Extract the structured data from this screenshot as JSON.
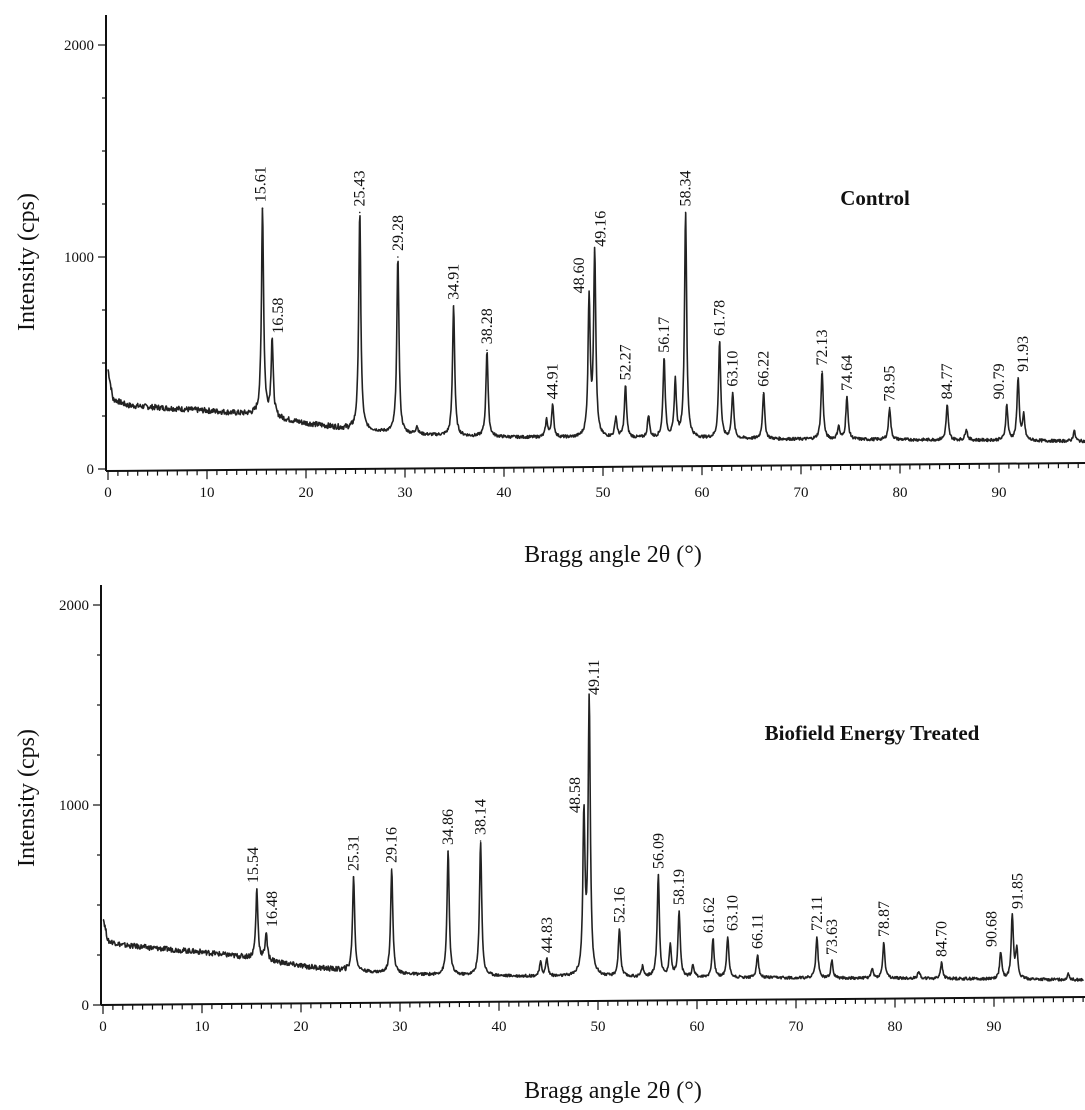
{
  "chart_data": [
    {
      "type": "line",
      "title": "Control",
      "xlabel": "Bragg angle 2θ (°)",
      "ylabel": "Intensity (cps)",
      "xlim": [
        0,
        99
      ],
      "ylim": [
        0,
        2000
      ],
      "xticks": [
        "0",
        "10",
        "20",
        "30",
        "40",
        "50",
        "60",
        "70",
        "80",
        "90"
      ],
      "yticks": [
        "0",
        "1000",
        "2000"
      ],
      "baseline": [
        [
          0,
          470
        ],
        [
          0.5,
          330
        ],
        [
          2,
          300
        ],
        [
          5,
          290
        ],
        [
          10,
          275
        ],
        [
          15,
          255
        ],
        [
          20,
          215
        ],
        [
          25,
          185
        ],
        [
          30,
          165
        ],
        [
          35,
          155
        ],
        [
          40,
          150
        ],
        [
          45,
          148
        ],
        [
          50,
          145
        ],
        [
          60,
          143
        ],
        [
          70,
          140
        ],
        [
          80,
          138
        ],
        [
          90,
          135
        ],
        [
          99,
          130
        ]
      ],
      "peaks": [
        {
          "x": 15.61,
          "y": 1230,
          "label": "15.61"
        },
        {
          "x": 16.58,
          "y": 610,
          "label": "16.58"
        },
        {
          "x": 25.43,
          "y": 1210,
          "label": "25.43"
        },
        {
          "x": 29.28,
          "y": 1000,
          "label": "29.28"
        },
        {
          "x": 34.91,
          "y": 770,
          "label": "34.91"
        },
        {
          "x": 38.28,
          "y": 560,
          "label": "38.28"
        },
        {
          "x": 44.91,
          "y": 300,
          "label": "44.91"
        },
        {
          "x": 48.6,
          "y": 800,
          "label": "48.60"
        },
        {
          "x": 49.16,
          "y": 1020,
          "label": "49.16"
        },
        {
          "x": 52.27,
          "y": 390,
          "label": "52.27"
        },
        {
          "x": 56.17,
          "y": 520,
          "label": "56.17"
        },
        {
          "x": 58.34,
          "y": 1210,
          "label": "58.34"
        },
        {
          "x": 61.78,
          "y": 600,
          "label": "61.78"
        },
        {
          "x": 63.1,
          "y": 360,
          "label": "63.10"
        },
        {
          "x": 66.22,
          "y": 360,
          "label": "66.22"
        },
        {
          "x": 72.13,
          "y": 460,
          "label": "72.13"
        },
        {
          "x": 74.64,
          "y": 340,
          "label": "74.64"
        },
        {
          "x": 78.95,
          "y": 290,
          "label": "78.95"
        },
        {
          "x": 84.77,
          "y": 300,
          "label": "84.77"
        },
        {
          "x": 90.79,
          "y": 300,
          "label": "90.79"
        },
        {
          "x": 91.93,
          "y": 430,
          "label": "91.93"
        }
      ],
      "minor_peaks": [
        [
          31.2,
          200
        ],
        [
          44.3,
          230
        ],
        [
          51.3,
          240
        ],
        [
          54.6,
          250
        ],
        [
          57.3,
          410
        ],
        [
          73.8,
          200
        ],
        [
          86.7,
          190
        ],
        [
          92.5,
          250
        ],
        [
          97.6,
          180
        ]
      ]
    },
    {
      "type": "line",
      "title": "Biofield Energy Treated",
      "xlabel": "Bragg angle 2θ (°)",
      "ylabel": "Intensity (cps)",
      "xlim": [
        0,
        99
      ],
      "ylim": [
        0,
        2000
      ],
      "xticks": [
        "0",
        "10",
        "20",
        "30",
        "40",
        "50",
        "60",
        "70",
        "80",
        "90"
      ],
      "yticks": [
        "0",
        "1000",
        "2000"
      ],
      "baseline": [
        [
          0,
          440
        ],
        [
          0.5,
          320
        ],
        [
          2,
          300
        ],
        [
          5,
          285
        ],
        [
          10,
          265
        ],
        [
          15,
          235
        ],
        [
          20,
          195
        ],
        [
          25,
          170
        ],
        [
          30,
          155
        ],
        [
          35,
          148
        ],
        [
          40,
          145
        ],
        [
          45,
          142
        ],
        [
          50,
          140
        ],
        [
          60,
          138
        ],
        [
          70,
          135
        ],
        [
          80,
          133
        ],
        [
          90,
          130
        ],
        [
          99,
          125
        ]
      ],
      "peaks": [
        {
          "x": 15.54,
          "y": 580,
          "label": "15.54"
        },
        {
          "x": 16.48,
          "y": 360,
          "label": "16.48"
        },
        {
          "x": 25.31,
          "y": 640,
          "label": "25.31"
        },
        {
          "x": 29.16,
          "y": 680,
          "label": "29.16"
        },
        {
          "x": 34.86,
          "y": 770,
          "label": "34.86"
        },
        {
          "x": 38.14,
          "y": 820,
          "label": "38.14"
        },
        {
          "x": 44.83,
          "y": 230,
          "label": "44.83"
        },
        {
          "x": 48.58,
          "y": 930,
          "label": "48.58"
        },
        {
          "x": 49.11,
          "y": 1520,
          "label": "49.11"
        },
        {
          "x": 52.16,
          "y": 380,
          "label": "52.16"
        },
        {
          "x": 56.09,
          "y": 650,
          "label": "56.09"
        },
        {
          "x": 58.19,
          "y": 470,
          "label": "58.19"
        },
        {
          "x": 61.62,
          "y": 330,
          "label": "61.62"
        },
        {
          "x": 63.1,
          "y": 340,
          "label": "63.10"
        },
        {
          "x": 66.11,
          "y": 250,
          "label": "66.11"
        },
        {
          "x": 72.11,
          "y": 340,
          "label": "72.11"
        },
        {
          "x": 73.63,
          "y": 220,
          "label": "73.63"
        },
        {
          "x": 78.87,
          "y": 310,
          "label": "78.87"
        },
        {
          "x": 84.7,
          "y": 210,
          "label": "84.70"
        },
        {
          "x": 90.68,
          "y": 260,
          "label": "90.68"
        },
        {
          "x": 91.85,
          "y": 450,
          "label": "91.85"
        }
      ],
      "minor_peaks": [
        [
          44.2,
          210
        ],
        [
          54.5,
          190
        ],
        [
          57.3,
          300
        ],
        [
          59.6,
          200
        ],
        [
          77.7,
          180
        ],
        [
          82.4,
          170
        ],
        [
          92.3,
          270
        ],
        [
          97.5,
          160
        ]
      ]
    }
  ]
}
